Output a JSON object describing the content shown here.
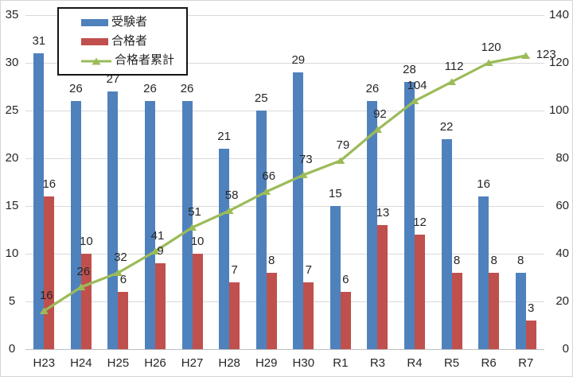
{
  "chart_data": {
    "type": "bar",
    "title": "",
    "categories": [
      "H23",
      "H24",
      "H25",
      "H26",
      "H27",
      "H28",
      "H29",
      "H30",
      "R1",
      "R3",
      "R4",
      "R5",
      "R6",
      "R7"
    ],
    "series": [
      {
        "id": "examinees",
        "name": "受験者",
        "kind": "bar",
        "axis": "left",
        "color": "#4F81BD",
        "values": [
          31,
          26,
          27,
          26,
          26,
          21,
          25,
          29,
          15,
          26,
          28,
          22,
          16,
          8
        ]
      },
      {
        "id": "passers",
        "name": "合格者",
        "kind": "bar",
        "axis": "left",
        "color": "#C0504D",
        "values": [
          16,
          10,
          6,
          9,
          10,
          7,
          8,
          7,
          6,
          13,
          12,
          8,
          8,
          3
        ]
      },
      {
        "id": "cumulative-passers",
        "name": "合格者累計",
        "kind": "line",
        "axis": "right",
        "color": "#9BBB59",
        "marker": "triangle",
        "values": [
          16,
          26,
          32,
          41,
          51,
          58,
          66,
          73,
          79,
          92,
          104,
          112,
          120,
          123
        ]
      }
    ],
    "left_axis": {
      "min": 0,
      "max": 35,
      "ticks": [
        0,
        5,
        10,
        15,
        20,
        25,
        30,
        35
      ]
    },
    "right_axis": {
      "min": 0,
      "max": 140,
      "ticks": [
        0,
        20,
        40,
        60,
        80,
        100,
        120,
        140
      ]
    },
    "grid": true,
    "data_labels": true,
    "legend": {
      "position": "top-left",
      "entries": [
        "受験者",
        "合格者",
        "合格者累計"
      ]
    },
    "colors": {
      "gridline": "#d9d9d9",
      "axis_line": "#c0c0c0",
      "label_text": "#262626"
    }
  }
}
